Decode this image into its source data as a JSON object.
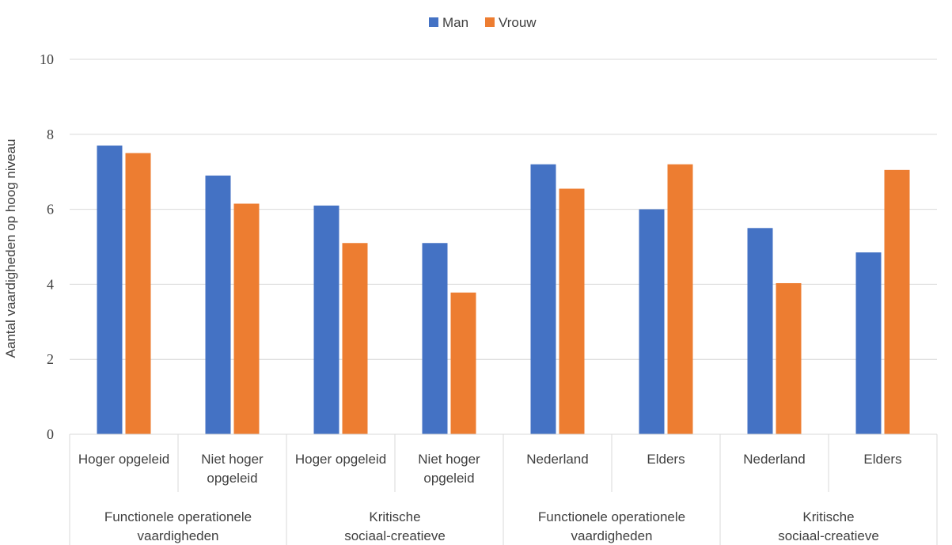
{
  "chart_data": {
    "type": "bar",
    "ylabel": "Aantal vaardigheden op hoog niveau",
    "ylim": [
      0,
      10
    ],
    "yticks": [
      0,
      2,
      4,
      6,
      8,
      10
    ],
    "grid": true,
    "legend_position": "top",
    "categories": [
      "Hoger opgeleid",
      "Niet hoger opgeleid",
      "Hoger opgeleid",
      "Niet hoger opgeleid",
      "Nederland",
      "Elders",
      "Nederland",
      "Elders"
    ],
    "groups": [
      "Functionele operationele vaardigheden",
      "Kritische sociaal-creatieve vaardigheden",
      "Functionele operationele vaardigheden",
      "Kritische sociaal-creatieve vaardigheden"
    ],
    "series": [
      {
        "name": "Man",
        "color": "#4472C4",
        "values": [
          7.7,
          6.9,
          6.1,
          5.1,
          7.2,
          6.0,
          5.5,
          4.85
        ]
      },
      {
        "name": "Vrouw",
        "color": "#ED7D31",
        "values": [
          7.5,
          6.15,
          5.1,
          3.78,
          6.55,
          7.2,
          4.03,
          7.05
        ]
      }
    ]
  }
}
